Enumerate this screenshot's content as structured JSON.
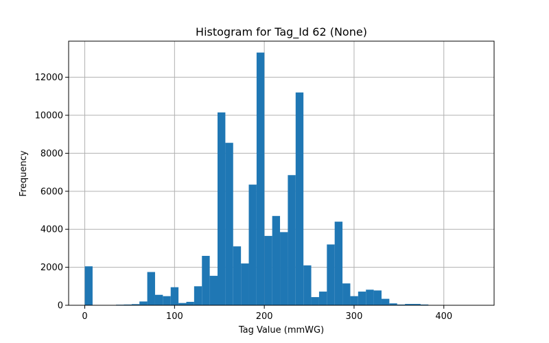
{
  "chart_data": {
    "type": "bar",
    "title": "Histogram for Tag_Id 62 (None)",
    "xlabel": "Tag Value (mmWG)",
    "ylabel": "Frequency",
    "xlim": [
      -18,
      456
    ],
    "ylim": [
      0,
      13900
    ],
    "xticks": [
      0,
      100,
      200,
      300,
      400
    ],
    "yticks": [
      0,
      2000,
      4000,
      6000,
      8000,
      10000,
      12000
    ],
    "grid": true,
    "bin_start": 0,
    "bin_width": 8.7,
    "bar_color": "#1f77b4",
    "values": [
      2050,
      0,
      0,
      0,
      30,
      40,
      60,
      200,
      1750,
      550,
      480,
      950,
      120,
      180,
      1000,
      2600,
      1550,
      10150,
      8550,
      3100,
      2200,
      6350,
      13300,
      3650,
      4700,
      3850,
      6850,
      11200,
      2100,
      430,
      720,
      3200,
      4400,
      1150,
      480,
      720,
      820,
      780,
      340,
      100,
      40,
      70,
      70,
      40,
      0,
      0,
      0,
      0,
      0,
      0
    ]
  }
}
